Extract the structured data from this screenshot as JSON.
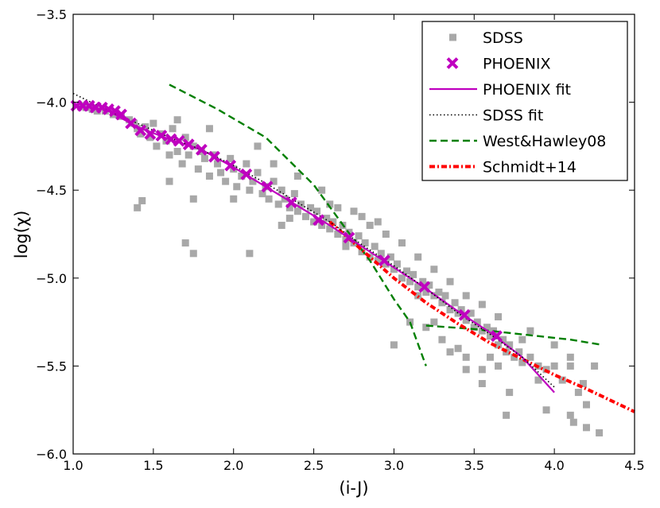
{
  "chart_data": {
    "type": "scatter",
    "title": "",
    "xlabel": "(i-J)",
    "ylabel": "log(χ)",
    "xlim": [
      1.0,
      4.5
    ],
    "ylim": [
      -6.0,
      -3.5
    ],
    "xticks": [
      1.0,
      1.5,
      2.0,
      2.5,
      3.0,
      3.5,
      4.0,
      4.5
    ],
    "xtick_labels": [
      "1.0",
      "1.5",
      "2.0",
      "2.5",
      "3.0",
      "3.5",
      "4.0",
      "4.5"
    ],
    "yticks": [
      -6.0,
      -5.5,
      -5.0,
      -4.5,
      -4.0,
      -3.5
    ],
    "ytick_labels": [
      "−6.0",
      "−5.5",
      "−5.0",
      "−4.5",
      "−4.0",
      "−3.5"
    ],
    "grid": false,
    "legend_position": "top-right",
    "colors": {
      "sdss": "#a8a8a8",
      "phoenix": "#bf00bf",
      "sdss_fit": "#000000",
      "west_hawley": "#007f00",
      "schmidt": "#ff0000"
    },
    "series": [
      {
        "name": "SDSS",
        "kind": "scatter",
        "marker": "square",
        "points": [
          [
            1.05,
            -4.02
          ],
          [
            1.08,
            -4.03
          ],
          [
            1.12,
            -4.04
          ],
          [
            1.15,
            -4.05
          ],
          [
            1.2,
            -4.05
          ],
          [
            1.25,
            -4.07
          ],
          [
            1.3,
            -4.08
          ],
          [
            1.35,
            -4.1
          ],
          [
            1.38,
            -4.12
          ],
          [
            1.4,
            -4.15
          ],
          [
            1.42,
            -4.18
          ],
          [
            1.45,
            -4.14
          ],
          [
            1.48,
            -4.2
          ],
          [
            1.5,
            -4.12
          ],
          [
            1.52,
            -4.25
          ],
          [
            1.55,
            -4.18
          ],
          [
            1.58,
            -4.22
          ],
          [
            1.6,
            -4.3
          ],
          [
            1.62,
            -4.15
          ],
          [
            1.65,
            -4.28
          ],
          [
            1.68,
            -4.35
          ],
          [
            1.7,
            -4.2
          ],
          [
            1.72,
            -4.3
          ],
          [
            1.75,
            -4.25
          ],
          [
            1.78,
            -4.38
          ],
          [
            1.8,
            -4.28
          ],
          [
            1.82,
            -4.32
          ],
          [
            1.85,
            -4.42
          ],
          [
            1.88,
            -4.3
          ],
          [
            1.9,
            -4.35
          ],
          [
            1.92,
            -4.4
          ],
          [
            1.95,
            -4.45
          ],
          [
            1.98,
            -4.32
          ],
          [
            2.0,
            -4.38
          ],
          [
            2.02,
            -4.48
          ],
          [
            2.05,
            -4.42
          ],
          [
            2.08,
            -4.35
          ],
          [
            2.1,
            -4.5
          ],
          [
            2.12,
            -4.45
          ],
          [
            2.15,
            -4.4
          ],
          [
            2.18,
            -4.52
          ],
          [
            2.2,
            -4.48
          ],
          [
            2.22,
            -4.55
          ],
          [
            2.25,
            -4.45
          ],
          [
            2.28,
            -4.58
          ],
          [
            2.3,
            -4.5
          ],
          [
            2.32,
            -4.55
          ],
          [
            2.35,
            -4.6
          ],
          [
            2.38,
            -4.52
          ],
          [
            2.4,
            -4.62
          ],
          [
            2.42,
            -4.58
          ],
          [
            2.45,
            -4.65
          ],
          [
            2.48,
            -4.6
          ],
          [
            2.5,
            -4.68
          ],
          [
            2.52,
            -4.62
          ],
          [
            2.55,
            -4.7
          ],
          [
            2.58,
            -4.66
          ],
          [
            2.6,
            -4.72
          ],
          [
            2.62,
            -4.68
          ],
          [
            2.65,
            -4.75
          ],
          [
            2.68,
            -4.7
          ],
          [
            2.7,
            -4.78
          ],
          [
            2.72,
            -4.74
          ],
          [
            2.75,
            -4.8
          ],
          [
            2.78,
            -4.76
          ],
          [
            2.8,
            -4.85
          ],
          [
            2.82,
            -4.8
          ],
          [
            2.85,
            -4.88
          ],
          [
            2.88,
            -4.82
          ],
          [
            2.9,
            -4.9
          ],
          [
            2.92,
            -4.86
          ],
          [
            2.95,
            -4.92
          ],
          [
            2.98,
            -4.88
          ],
          [
            3.0,
            -4.95
          ],
          [
            3.02,
            -4.92
          ],
          [
            3.05,
            -5.0
          ],
          [
            3.08,
            -4.96
          ],
          [
            3.1,
            -5.02
          ],
          [
            3.12,
            -4.98
          ],
          [
            3.15,
            -5.05
          ],
          [
            3.18,
            -5.02
          ],
          [
            3.2,
            -5.08
          ],
          [
            3.22,
            -5.04
          ],
          [
            3.25,
            -5.1
          ],
          [
            3.28,
            -5.08
          ],
          [
            3.3,
            -5.14
          ],
          [
            3.32,
            -5.1
          ],
          [
            3.35,
            -5.18
          ],
          [
            3.38,
            -5.14
          ],
          [
            3.4,
            -5.2
          ],
          [
            3.42,
            -5.18
          ],
          [
            3.45,
            -5.24
          ],
          [
            3.48,
            -5.2
          ],
          [
            3.5,
            -5.28
          ],
          [
            3.52,
            -5.25
          ],
          [
            3.55,
            -5.3
          ],
          [
            3.58,
            -5.28
          ],
          [
            3.6,
            -5.33
          ],
          [
            3.62,
            -5.3
          ],
          [
            3.65,
            -5.38
          ],
          [
            3.68,
            -5.35
          ],
          [
            3.7,
            -5.42
          ],
          [
            3.72,
            -5.38
          ],
          [
            3.75,
            -5.45
          ],
          [
            3.78,
            -5.42
          ],
          [
            3.8,
            -5.48
          ],
          [
            3.85,
            -5.45
          ],
          [
            3.9,
            -5.5
          ],
          [
            3.95,
            -5.52
          ],
          [
            4.0,
            -5.5
          ],
          [
            1.4,
            -4.6
          ],
          [
            1.43,
            -4.56
          ],
          [
            1.7,
            -4.8
          ],
          [
            1.75,
            -4.86
          ],
          [
            1.75,
            -4.55
          ],
          [
            2.1,
            -4.86
          ],
          [
            2.3,
            -4.7
          ],
          [
            2.6,
            -4.58
          ],
          [
            2.8,
            -4.65
          ],
          [
            3.0,
            -5.38
          ],
          [
            3.1,
            -5.25
          ],
          [
            3.2,
            -5.28
          ],
          [
            3.3,
            -5.35
          ],
          [
            3.35,
            -5.42
          ],
          [
            3.4,
            -5.4
          ],
          [
            3.45,
            -5.45
          ],
          [
            3.55,
            -5.52
          ],
          [
            3.6,
            -5.45
          ],
          [
            3.65,
            -5.5
          ],
          [
            3.8,
            -5.35
          ],
          [
            3.85,
            -5.3
          ],
          [
            3.9,
            -5.58
          ],
          [
            4.0,
            -5.38
          ],
          [
            4.05,
            -5.58
          ],
          [
            4.1,
            -5.5
          ],
          [
            4.1,
            -5.45
          ],
          [
            4.15,
            -5.65
          ],
          [
            4.2,
            -5.72
          ],
          [
            4.18,
            -5.6
          ],
          [
            4.25,
            -5.5
          ],
          [
            3.7,
            -5.78
          ],
          [
            3.95,
            -5.75
          ],
          [
            4.1,
            -5.78
          ],
          [
            4.12,
            -5.82
          ],
          [
            4.2,
            -5.85
          ],
          [
            4.28,
            -5.88
          ],
          [
            3.45,
            -5.52
          ],
          [
            3.55,
            -5.6
          ],
          [
            3.72,
            -5.65
          ],
          [
            2.35,
            -4.66
          ],
          [
            2.7,
            -4.82
          ],
          [
            2.9,
            -4.68
          ],
          [
            3.15,
            -5.1
          ],
          [
            3.25,
            -5.25
          ],
          [
            1.6,
            -4.45
          ],
          [
            1.65,
            -4.1
          ],
          [
            1.85,
            -4.15
          ],
          [
            2.0,
            -4.55
          ],
          [
            2.15,
            -4.25
          ],
          [
            2.25,
            -4.35
          ],
          [
            2.4,
            -4.42
          ],
          [
            2.55,
            -4.5
          ],
          [
            2.65,
            -4.6
          ],
          [
            2.75,
            -4.62
          ],
          [
            2.85,
            -4.7
          ],
          [
            2.95,
            -4.75
          ],
          [
            3.05,
            -4.8
          ],
          [
            3.15,
            -4.88
          ],
          [
            3.25,
            -4.95
          ],
          [
            3.35,
            -5.02
          ],
          [
            3.45,
            -5.1
          ],
          [
            3.55,
            -5.15
          ],
          [
            3.65,
            -5.22
          ]
        ]
      },
      {
        "name": "PHOENIX",
        "kind": "scatter",
        "marker": "x",
        "points": [
          [
            1.02,
            -4.02
          ],
          [
            1.06,
            -4.02
          ],
          [
            1.1,
            -4.02
          ],
          [
            1.14,
            -4.03
          ],
          [
            1.18,
            -4.03
          ],
          [
            1.22,
            -4.04
          ],
          [
            1.26,
            -4.05
          ],
          [
            1.3,
            -4.07
          ],
          [
            1.36,
            -4.12
          ],
          [
            1.42,
            -4.16
          ],
          [
            1.48,
            -4.18
          ],
          [
            1.55,
            -4.19
          ],
          [
            1.61,
            -4.21
          ],
          [
            1.66,
            -4.22
          ],
          [
            1.72,
            -4.24
          ],
          [
            1.8,
            -4.27
          ],
          [
            1.88,
            -4.31
          ],
          [
            1.98,
            -4.36
          ],
          [
            2.08,
            -4.41
          ],
          [
            2.21,
            -4.48
          ],
          [
            2.36,
            -4.57
          ],
          [
            2.53,
            -4.67
          ],
          [
            2.72,
            -4.77
          ],
          [
            2.94,
            -4.9
          ],
          [
            3.19,
            -5.05
          ],
          [
            3.44,
            -5.21
          ],
          [
            3.64,
            -5.33
          ]
        ]
      },
      {
        "name": "PHOENIX fit",
        "kind": "line",
        "dash": "solid",
        "points": [
          [
            1.0,
            -4.02
          ],
          [
            1.2,
            -4.04
          ],
          [
            1.4,
            -4.14
          ],
          [
            1.6,
            -4.21
          ],
          [
            1.8,
            -4.27
          ],
          [
            2.0,
            -4.37
          ],
          [
            2.2,
            -4.48
          ],
          [
            2.4,
            -4.59
          ],
          [
            2.6,
            -4.7
          ],
          [
            2.8,
            -4.82
          ],
          [
            3.0,
            -4.94
          ],
          [
            3.2,
            -5.06
          ],
          [
            3.4,
            -5.19
          ],
          [
            3.6,
            -5.31
          ],
          [
            3.8,
            -5.45
          ],
          [
            4.0,
            -5.65
          ]
        ]
      },
      {
        "name": "SDSS fit",
        "kind": "line",
        "dash": "dotted",
        "points": [
          [
            1.0,
            -3.95
          ],
          [
            1.2,
            -4.04
          ],
          [
            1.4,
            -4.12
          ],
          [
            1.6,
            -4.2
          ],
          [
            1.8,
            -4.27
          ],
          [
            2.0,
            -4.36
          ],
          [
            2.2,
            -4.46
          ],
          [
            2.4,
            -4.57
          ],
          [
            2.6,
            -4.68
          ],
          [
            2.8,
            -4.81
          ],
          [
            3.0,
            -4.93
          ],
          [
            3.2,
            -5.06
          ],
          [
            3.4,
            -5.2
          ],
          [
            3.6,
            -5.32
          ],
          [
            3.8,
            -5.45
          ],
          [
            4.0,
            -5.62
          ]
        ]
      },
      {
        "name": "West&Hawley08",
        "kind": "line",
        "dash": "dashed",
        "segments": [
          [
            [
              1.6,
              -3.9
            ],
            [
              1.9,
              -4.04
            ],
            [
              2.2,
              -4.2
            ],
            [
              2.5,
              -4.47
            ],
            [
              2.7,
              -4.72
            ],
            [
              2.85,
              -4.9
            ],
            [
              3.0,
              -5.12
            ],
            [
              3.1,
              -5.25
            ],
            [
              3.2,
              -5.5
            ]
          ],
          [
            [
              3.2,
              -5.27
            ],
            [
              3.5,
              -5.29
            ],
            [
              3.8,
              -5.32
            ],
            [
              4.1,
              -5.35
            ],
            [
              4.3,
              -5.38
            ]
          ]
        ]
      },
      {
        "name": "Schmidt+14",
        "kind": "line",
        "dash": "dash-dot",
        "points": [
          [
            2.6,
            -4.68
          ],
          [
            2.8,
            -4.84
          ],
          [
            3.0,
            -5.0
          ],
          [
            3.2,
            -5.14
          ],
          [
            3.4,
            -5.26
          ],
          [
            3.6,
            -5.37
          ],
          [
            3.8,
            -5.46
          ],
          [
            4.0,
            -5.55
          ],
          [
            4.2,
            -5.63
          ],
          [
            4.5,
            -5.76
          ]
        ]
      }
    ]
  }
}
